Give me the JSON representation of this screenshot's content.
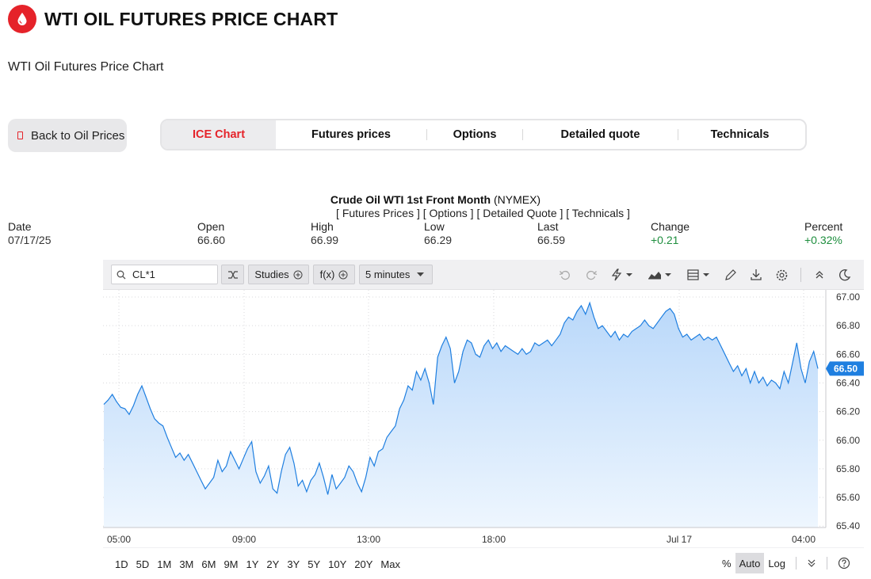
{
  "header": {
    "title": "WTI OIL FUTURES PRICE CHART",
    "logo_icon": "oil-drop-icon",
    "brand_color": "#e5232a"
  },
  "subtitle": "WTI Oil Futures Price Chart",
  "back_button": {
    "label": "Back to Oil Prices"
  },
  "tabs": [
    {
      "label": "ICE Chart",
      "active": true
    },
    {
      "label": "Futures prices",
      "active": false
    },
    {
      "label": "Options",
      "active": false
    },
    {
      "label": "Detailed quote",
      "active": false
    },
    {
      "label": "Technicals",
      "active": false
    }
  ],
  "chart_heading": {
    "name": "Crude Oil WTI 1st Front Month",
    "exchange": "(NYMEX)"
  },
  "chart_links": "[ Futures Prices ] [ Options ] [ Detailed Quote ] [ Technicals ]",
  "quote": {
    "date": {
      "label": "Date",
      "value": "07/17/25"
    },
    "open": {
      "label": "Open",
      "value": "66.60"
    },
    "high": {
      "label": "High",
      "value": "66.99"
    },
    "low": {
      "label": "Low",
      "value": "66.29"
    },
    "last": {
      "label": "Last",
      "value": "66.59"
    },
    "change": {
      "label": "Change",
      "value": "+0.21"
    },
    "percent": {
      "label": "Percent",
      "value": "+0.32%"
    },
    "positive_color": "#1e8e3e"
  },
  "toolbar": {
    "symbol": "CL*1",
    "studies_label": "Studies",
    "fx_label": "f(x)",
    "interval_label": "5 minutes",
    "icons": [
      "undo-icon",
      "redo-icon",
      "events-icon",
      "chart-type-icon",
      "layout-icon",
      "draw-icon",
      "download-icon",
      "settings-icon",
      "collapse-icon",
      "theme-icon"
    ]
  },
  "ranges": [
    "1D",
    "5D",
    "1M",
    "3M",
    "6M",
    "9M",
    "1Y",
    "2Y",
    "3Y",
    "5Y",
    "10Y",
    "20Y",
    "Max"
  ],
  "scale": {
    "percent": "%",
    "auto": "Auto",
    "log": "Log",
    "active": "Auto"
  },
  "chart_data": {
    "type": "area",
    "x_ticks": [
      "05:00",
      "09:00",
      "13:00",
      "18:00",
      "Jul 17",
      "04:00"
    ],
    "y_ticks": [
      "67.00",
      "66.80",
      "66.60",
      "66.40",
      "66.20",
      "66.00",
      "65.80",
      "65.60",
      "65.40"
    ],
    "ylim": [
      65.39,
      67.05
    ],
    "last_price_label": "66.50",
    "line_color": "#1f7fe0",
    "series": [
      {
        "values": [
          66.25,
          66.28,
          66.32,
          66.27,
          66.23,
          66.22,
          66.18,
          66.24,
          66.32,
          66.38,
          66.3,
          66.22,
          66.15,
          66.12,
          66.1,
          66.02,
          65.95,
          65.88,
          65.91,
          65.86,
          65.9,
          65.84,
          65.78,
          65.72,
          65.66,
          65.7,
          65.74,
          65.86,
          65.78,
          65.82,
          65.92,
          65.86,
          65.8,
          65.87,
          65.94,
          65.99,
          65.78,
          65.7,
          65.75,
          65.82,
          65.66,
          65.63,
          65.78,
          65.9,
          65.95,
          65.84,
          65.68,
          65.72,
          65.64,
          65.72,
          65.76,
          65.84,
          65.74,
          65.62,
          65.76,
          65.66,
          65.7,
          65.74,
          65.82,
          65.78,
          65.7,
          65.64,
          65.74,
          65.88,
          65.82,
          65.92,
          65.94,
          66.02,
          66.06,
          66.1,
          66.22,
          66.28,
          66.38,
          66.35,
          66.48,
          66.42,
          66.5,
          66.4,
          66.25,
          66.58,
          66.66,
          66.72,
          66.64,
          66.4,
          66.48,
          66.62,
          66.7,
          66.68,
          66.6,
          66.58,
          66.66,
          66.7,
          66.64,
          66.68,
          66.62,
          66.66,
          66.64,
          66.62,
          66.6,
          66.64,
          66.6,
          66.62,
          66.68,
          66.66,
          66.68,
          66.7,
          66.66,
          66.7,
          66.74,
          66.82,
          66.86,
          66.84,
          66.9,
          66.94,
          66.88,
          66.96,
          66.86,
          66.78,
          66.8,
          66.76,
          66.72,
          66.76,
          66.7,
          66.74,
          66.72,
          66.76,
          66.78,
          66.8,
          66.84,
          66.8,
          66.78,
          66.82,
          66.86,
          66.9,
          66.92,
          66.88,
          66.78,
          66.72,
          66.74,
          66.7,
          66.72,
          66.74,
          66.7,
          66.72,
          66.7,
          66.72,
          66.66,
          66.6,
          66.54,
          66.48,
          66.52,
          66.45,
          66.5,
          66.4,
          66.48,
          66.4,
          66.44,
          66.38,
          66.42,
          66.4,
          66.36,
          66.48,
          66.4,
          66.54,
          66.68,
          66.5,
          66.4,
          66.55,
          66.62,
          66.5
        ]
      }
    ]
  }
}
